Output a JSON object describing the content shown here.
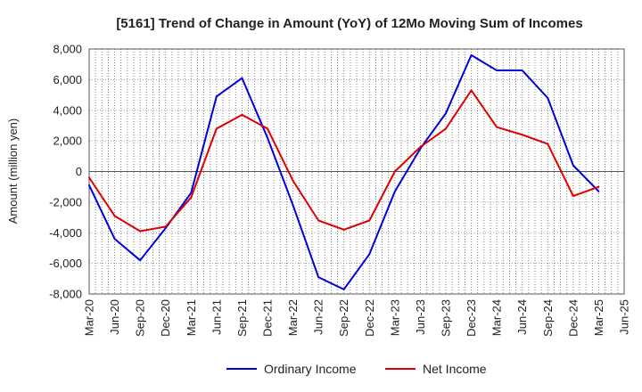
{
  "chart_data": {
    "type": "line",
    "title": "[5161]  Trend of Change in Amount (YoY) of 12Mo Moving Sum of Incomes",
    "ylabel": "Amount (million yen)",
    "xlabel": "",
    "ylim": [
      -8000,
      8000
    ],
    "yticks": [
      8000,
      6000,
      4000,
      2000,
      0,
      -2000,
      -4000,
      -6000,
      -8000
    ],
    "ytick_labels": [
      "8,000",
      "6,000",
      "4,000",
      "2,000",
      "0",
      "-2,000",
      "-4,000",
      "-6,000",
      "-8,000"
    ],
    "categories": [
      "Mar-20",
      "Jun-20",
      "Sep-20",
      "Dec-20",
      "Mar-21",
      "Jun-21",
      "Sep-21",
      "Dec-21",
      "Mar-22",
      "Jun-22",
      "Sep-22",
      "Dec-22",
      "Mar-23",
      "Jun-23",
      "Sep-23",
      "Dec-23",
      "Mar-24",
      "Jun-24",
      "Sep-24",
      "Dec-24",
      "Mar-25",
      "Jun-25"
    ],
    "grid": true,
    "legend_position": "bottom",
    "series": [
      {
        "name": "Ordinary Income",
        "color": "#0000dd",
        "values": [
          -900,
          -4400,
          -5800,
          -3700,
          -1400,
          4900,
          6100,
          2200,
          -2200,
          -6900,
          -7700,
          -5400,
          -1300,
          1500,
          3800,
          7600,
          6600,
          6600,
          4800,
          400,
          -1300,
          null
        ]
      },
      {
        "name": "Net Income",
        "color": "#dd0000",
        "values": [
          -400,
          -2900,
          -3900,
          -3600,
          -1700,
          2800,
          3700,
          2800,
          -600,
          -3200,
          -3800,
          -3200,
          0,
          1600,
          2800,
          5300,
          2900,
          2400,
          1800,
          -1600,
          -1000,
          null
        ]
      }
    ]
  }
}
